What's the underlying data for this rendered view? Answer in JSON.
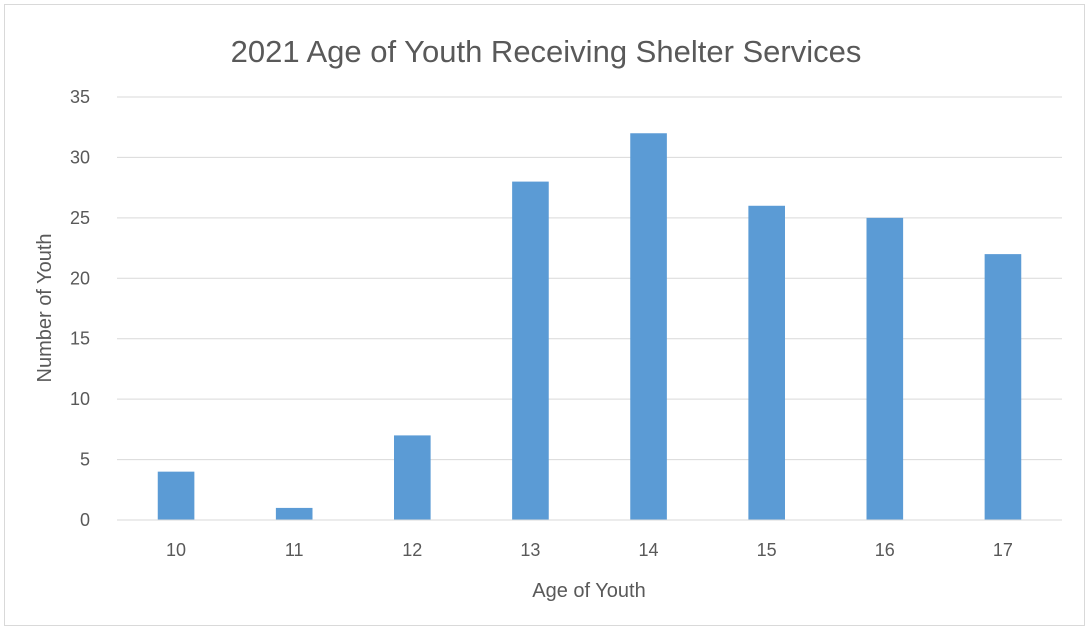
{
  "chart_data": {
    "type": "bar",
    "title": "2021 Age of Youth Receiving Shelter Services",
    "xlabel": "Age of Youth",
    "ylabel": "Number of Youth",
    "categories": [
      "10",
      "11",
      "12",
      "13",
      "14",
      "15",
      "16",
      "17"
    ],
    "values": [
      4,
      1,
      7,
      28,
      32,
      26,
      25,
      22
    ],
    "ylim": [
      0,
      35
    ],
    "yticks": [
      "0",
      "5",
      "10",
      "15",
      "20",
      "25",
      "30",
      "35"
    ],
    "grid": true,
    "legend": "none",
    "bar_color": "#5b9bd5",
    "grid_color": "#d9d9d9",
    "text_color": "#595959"
  }
}
